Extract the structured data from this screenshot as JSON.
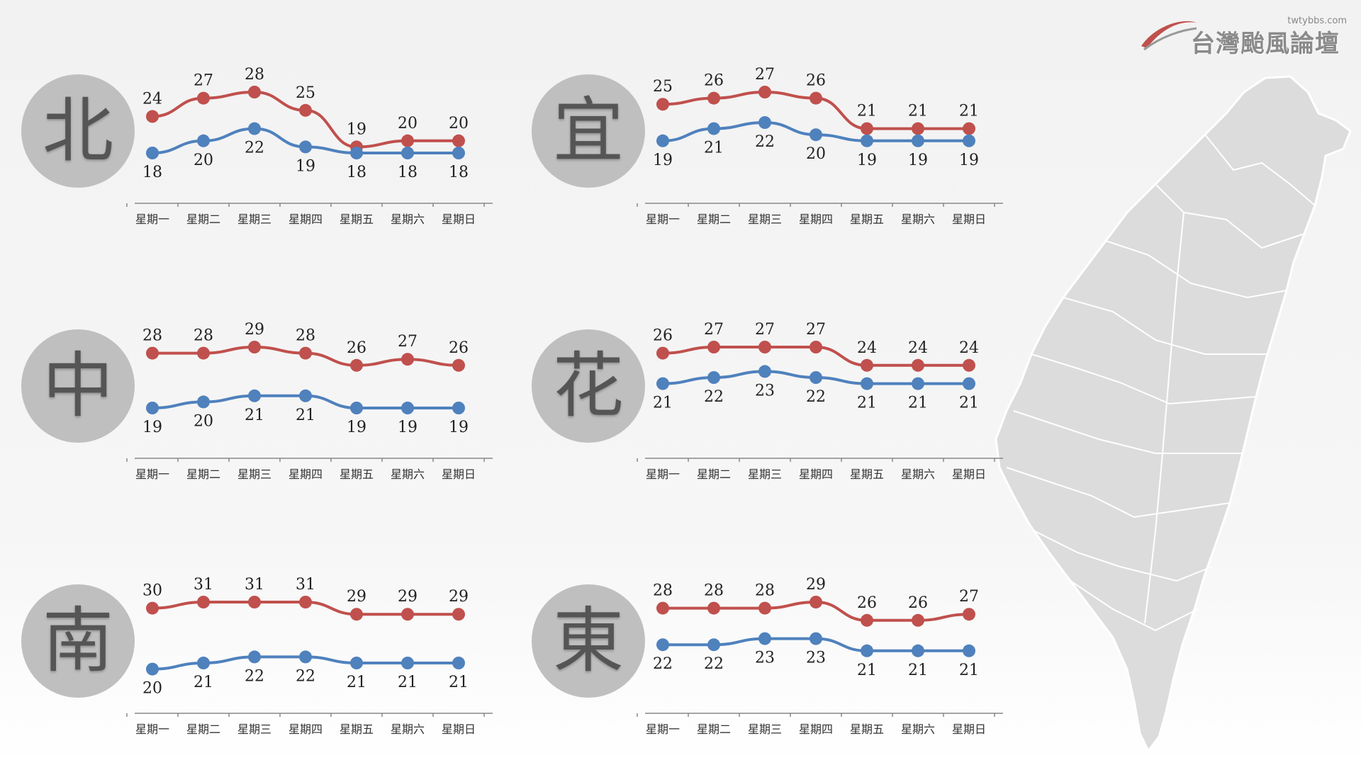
{
  "logo": {
    "text": "台灣颱風論壇",
    "url": "twtybbs.com"
  },
  "colors": {
    "high": "#c0504d",
    "low": "#4f81bd",
    "circle": "#bfbfbf",
    "map": "#dcdcdc"
  },
  "chart_data": [
    {
      "type": "line",
      "region": "北",
      "categories": [
        "星期一",
        "星期二",
        "星期三",
        "星期四",
        "星期五",
        "星期六",
        "星期日"
      ],
      "series": [
        {
          "values": [
            24,
            27,
            28,
            25,
            19,
            20,
            20
          ]
        },
        {
          "values": [
            18,
            20,
            22,
            19,
            18,
            18,
            18
          ]
        }
      ]
    },
    {
      "type": "line",
      "region": "宜",
      "categories": [
        "星期一",
        "星期二",
        "星期三",
        "星期四",
        "星期五",
        "星期六",
        "星期日"
      ],
      "series": [
        {
          "values": [
            25,
            26,
            27,
            26,
            21,
            21,
            21
          ]
        },
        {
          "values": [
            19,
            21,
            22,
            20,
            19,
            19,
            19
          ]
        }
      ]
    },
    {
      "type": "line",
      "region": "中",
      "categories": [
        "星期一",
        "星期二",
        "星期三",
        "星期四",
        "星期五",
        "星期六",
        "星期日"
      ],
      "series": [
        {
          "values": [
            28,
            28,
            29,
            28,
            26,
            27,
            26
          ]
        },
        {
          "values": [
            19,
            20,
            21,
            21,
            19,
            19,
            19
          ]
        }
      ]
    },
    {
      "type": "line",
      "region": "花",
      "categories": [
        "星期一",
        "星期二",
        "星期三",
        "星期四",
        "星期五",
        "星期六",
        "星期日"
      ],
      "series": [
        {
          "values": [
            26,
            27,
            27,
            27,
            24,
            24,
            24
          ]
        },
        {
          "values": [
            21,
            22,
            23,
            22,
            21,
            21,
            21
          ]
        }
      ]
    },
    {
      "type": "line",
      "region": "南",
      "categories": [
        "星期一",
        "星期二",
        "星期三",
        "星期四",
        "星期五",
        "星期六",
        "星期日"
      ],
      "series": [
        {
          "values": [
            30,
            31,
            31,
            31,
            29,
            29,
            29
          ]
        },
        {
          "values": [
            20,
            21,
            22,
            22,
            21,
            21,
            21
          ]
        }
      ]
    },
    {
      "type": "line",
      "region": "東",
      "categories": [
        "星期一",
        "星期二",
        "星期三",
        "星期四",
        "星期五",
        "星期六",
        "星期日"
      ],
      "series": [
        {
          "values": [
            28,
            28,
            28,
            29,
            26,
            26,
            27
          ]
        },
        {
          "values": [
            22,
            22,
            23,
            23,
            21,
            21,
            21
          ]
        }
      ]
    }
  ]
}
